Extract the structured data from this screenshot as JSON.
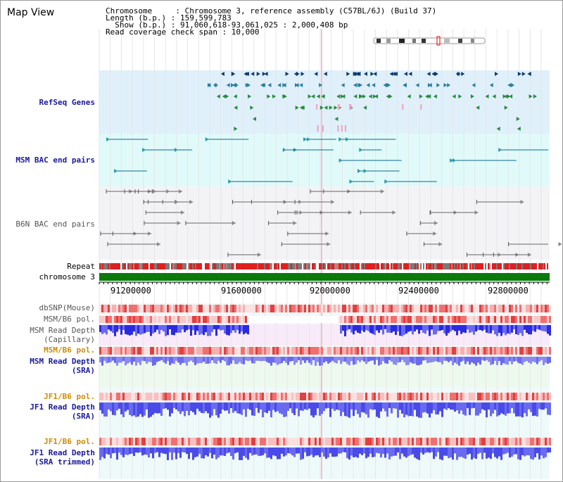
{
  "title": "Map View",
  "info": {
    "line1": "Chromosome     : Chromosome 3, reference assembly (C57BL/6J) (Build 37)",
    "line2": "Length (b.p.) : 159,599,783",
    "line3": "  Show (b.p.) : 91,060,618-93,061,025 : 2,000,408 bp",
    "line4": "Read coverage check span : 10,000"
  },
  "tracks": {
    "refseq": "RefSeq Genes",
    "msm_bac": "MSM BAC end pairs",
    "b6n_bac": "B6N BAC end pairs",
    "repeat": "Repeat",
    "chromosome": "chromosome 3",
    "dbsnp": "dbSNP(Mouse)",
    "msm_b6_pol": "MSM/B6 pol.",
    "msm_read_cap_1": "MSM Read Depth",
    "msm_read_cap_2": "(Capillary)",
    "msm_b6_pol2": "MSM/B6 pol.",
    "msm_read_sra_1": "MSM Read Depth",
    "msm_read_sra_2": "(SRA)",
    "jf1_b6_pol": "JF1/B6 pol.",
    "jf1_read_sra_1": "JF1 Read Depth",
    "jf1_read_sra_2": "(SRA)",
    "jf1_b6_pol2": "JF1/B6 pol.",
    "jf1_read_trim_1": "JF1 Read Depth",
    "jf1_read_trim_2": "(SRA trimmed)"
  },
  "axis": {
    "ticks": [
      "91200000",
      "91600000",
      "92000000",
      "92400000",
      "92800000"
    ]
  },
  "colors": {
    "refseq_bg": "#dff0fb",
    "msm_bg": "#e0fafa",
    "b6n_bg": "#f3f3f6",
    "chrom": "#0a7a0a",
    "depth": "#4a4ae8",
    "pol": "#f4b0b0"
  }
}
